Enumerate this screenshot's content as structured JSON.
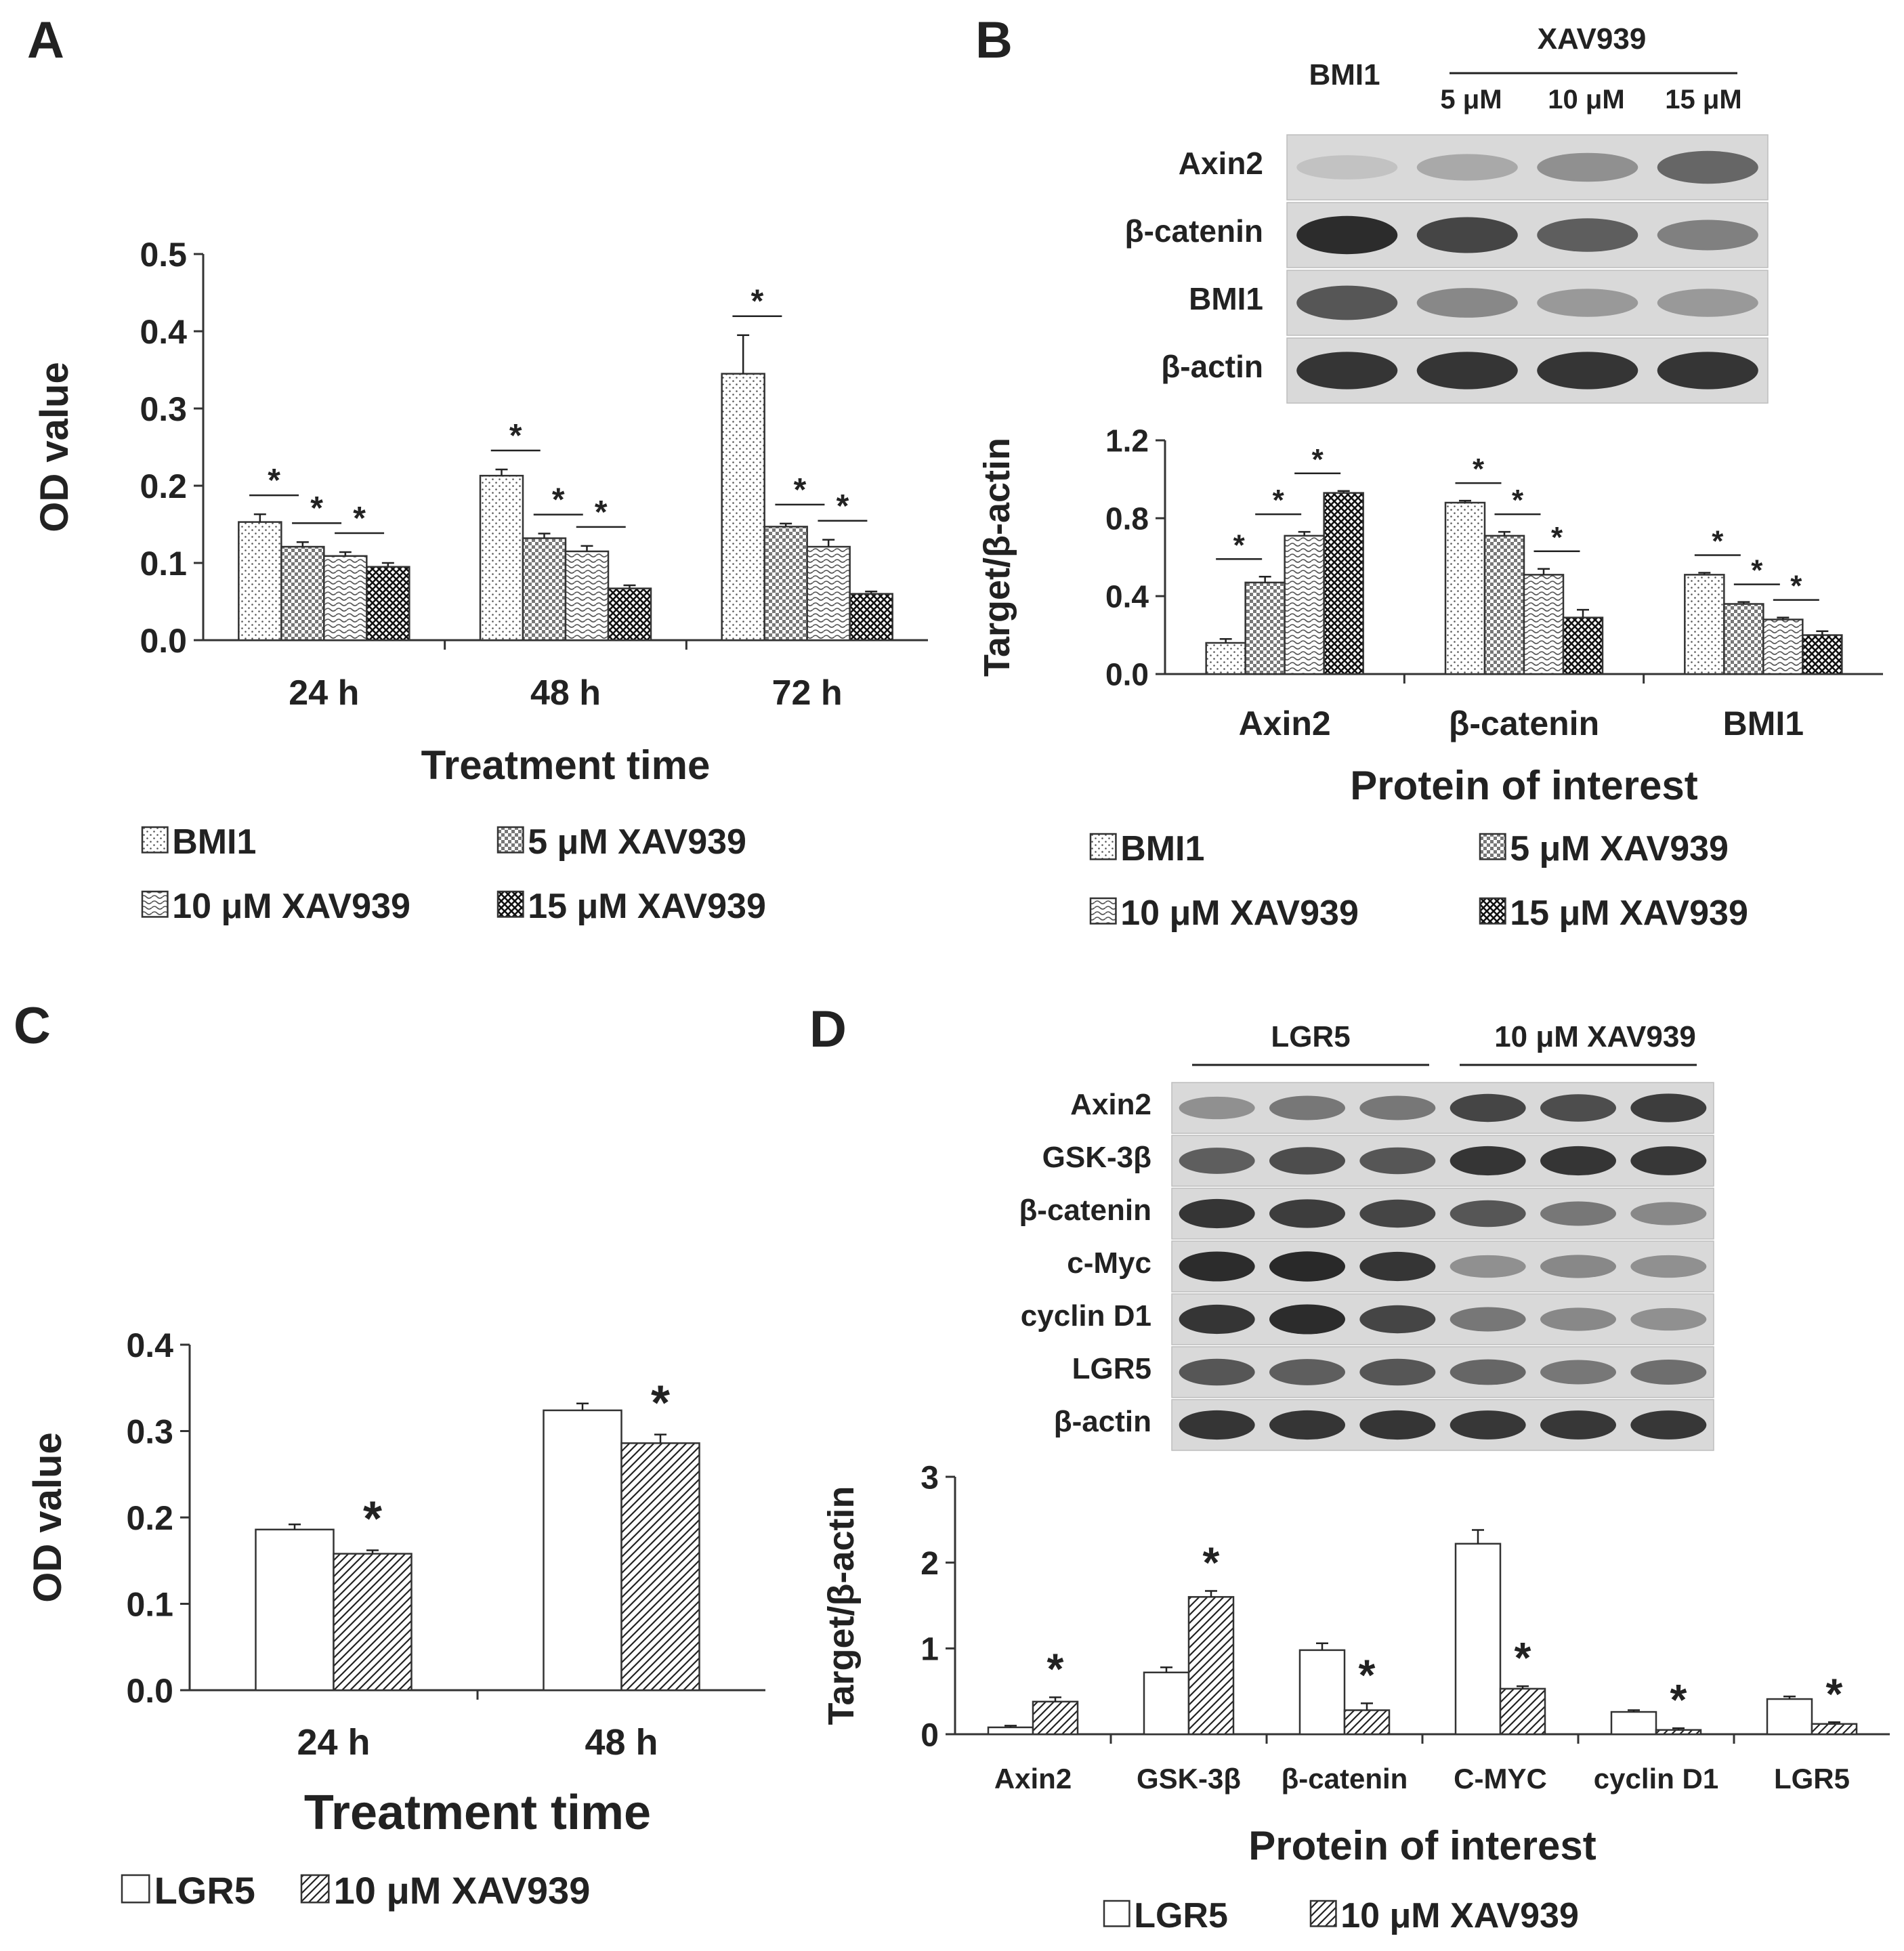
{
  "panels": {
    "A": {
      "label": "A",
      "chart": {
        "type": "bar",
        "ylabel": "OD value",
        "xlabel": "Treatment time",
        "ylim": [
          0,
          0.5
        ],
        "yticks": [
          "0.0",
          "0.1",
          "0.2",
          "0.3",
          "0.4",
          "0.5"
        ],
        "categories": [
          "24 h",
          "48 h",
          "72 h"
        ],
        "series": [
          {
            "name": "BMI1",
            "pattern": "dots",
            "values": [
              0.153,
              0.213,
              0.345
            ],
            "errors": [
              0.01,
              0.008,
              0.05
            ]
          },
          {
            "name": "5 μM XAV939",
            "pattern": "check",
            "values": [
              0.121,
              0.132,
              0.147
            ],
            "errors": [
              0.006,
              0.006,
              0.004
            ]
          },
          {
            "name": "10 μM XAV939",
            "pattern": "wave",
            "values": [
              0.109,
              0.115,
              0.121
            ],
            "errors": [
              0.005,
              0.007,
              0.009
            ]
          },
          {
            "name": "15 μM XAV939",
            "pattern": "cross",
            "values": [
              0.095,
              0.067,
              0.06
            ],
            "errors": [
              0.005,
              0.004,
              0.003
            ]
          }
        ],
        "sig_marker": "*",
        "legend": [
          "BMI1",
          "5 μM XAV939",
          "10 μM XAV939",
          "15 μM XAV939"
        ]
      }
    },
    "B": {
      "label": "B",
      "blot": {
        "group_label": "XAV939",
        "lane_labels": [
          "BMI1",
          "5 μM",
          "10 μM",
          "15 μM"
        ],
        "rows": [
          {
            "label": "Axin2",
            "intensity": [
              0.05,
              0.2,
              0.35,
              0.6
            ]
          },
          {
            "label": "β-catenin",
            "intensity": [
              0.95,
              0.8,
              0.65,
              0.45
            ]
          },
          {
            "label": "BMI1",
            "intensity": [
              0.7,
              0.4,
              0.3,
              0.3
            ]
          },
          {
            "label": "β-actin",
            "intensity": [
              0.9,
              0.9,
              0.9,
              0.9
            ]
          }
        ]
      },
      "chart": {
        "type": "bar",
        "ylabel": "Target/β-actin",
        "xlabel": "Protein of interest",
        "ylim": [
          0,
          1.2
        ],
        "yticks": [
          "0.0",
          "0.4",
          "0.8",
          "1.2"
        ],
        "categories": [
          "Axin2",
          "β-catenin",
          "BMI1"
        ],
        "series": [
          {
            "name": "BMI1",
            "pattern": "dots",
            "values": [
              0.16,
              0.88,
              0.51
            ],
            "errors": [
              0.02,
              0.01,
              0.01
            ]
          },
          {
            "name": "5 μM XAV939",
            "pattern": "check",
            "values": [
              0.47,
              0.71,
              0.36
            ],
            "errors": [
              0.03,
              0.02,
              0.01
            ]
          },
          {
            "name": "10 μM XAV939",
            "pattern": "wave",
            "values": [
              0.71,
              0.51,
              0.28
            ],
            "errors": [
              0.02,
              0.03,
              0.01
            ]
          },
          {
            "name": "15 μM XAV939",
            "pattern": "cross",
            "values": [
              0.93,
              0.29,
              0.2
            ],
            "errors": [
              0.01,
              0.04,
              0.02
            ]
          }
        ],
        "sig_marker": "*",
        "legend": [
          "BMI1",
          "5 μM XAV939",
          "10 μM XAV939",
          "15 μM XAV939"
        ]
      }
    },
    "C": {
      "label": "C",
      "chart": {
        "type": "bar",
        "ylabel": "OD value",
        "xlabel": "Treatment time",
        "ylim": [
          0,
          0.4
        ],
        "yticks": [
          "0.0",
          "0.1",
          "0.2",
          "0.3",
          "0.4"
        ],
        "categories": [
          "24 h",
          "48 h"
        ],
        "series": [
          {
            "name": "LGR5",
            "pattern": "white",
            "values": [
              0.186,
              0.324
            ],
            "errors": [
              0.006,
              0.008
            ]
          },
          {
            "name": "10 μM XAV939",
            "pattern": "hatch",
            "values": [
              0.158,
              0.286
            ],
            "errors": [
              0.004,
              0.01
            ]
          }
        ],
        "sig_marker": "*",
        "legend": [
          "LGR5",
          "10 μM XAV939"
        ]
      }
    },
    "D": {
      "label": "D",
      "blot": {
        "group_labels": [
          "LGR5",
          "10 μM XAV939"
        ],
        "rows": [
          {
            "label": "Axin2",
            "intensity": [
              0.35,
              0.5,
              0.5,
              0.8,
              0.75,
              0.85
            ]
          },
          {
            "label": "GSK-3β",
            "intensity": [
              0.65,
              0.75,
              0.7,
              0.9,
              0.9,
              0.88
            ]
          },
          {
            "label": "β-catenin",
            "intensity": [
              0.9,
              0.85,
              0.8,
              0.7,
              0.5,
              0.4
            ]
          },
          {
            "label": "c-Myc",
            "intensity": [
              0.95,
              0.97,
              0.9,
              0.35,
              0.4,
              0.35
            ]
          },
          {
            "label": "cyclin D1",
            "intensity": [
              0.9,
              0.95,
              0.8,
              0.5,
              0.4,
              0.35
            ]
          },
          {
            "label": "LGR5",
            "intensity": [
              0.7,
              0.65,
              0.7,
              0.6,
              0.5,
              0.55
            ]
          },
          {
            "label": "β-actin",
            "intensity": [
              0.9,
              0.9,
              0.9,
              0.88,
              0.88,
              0.88
            ]
          }
        ]
      },
      "chart": {
        "type": "bar",
        "ylabel": "Target/β-actin",
        "xlabel": "Protein of interest",
        "ylim": [
          0,
          3
        ],
        "yticks": [
          "0",
          "1",
          "2",
          "3"
        ],
        "categories": [
          "Axin2",
          "GSK-3β",
          "β-catenin",
          "C-MYC",
          "cyclin D1",
          "LGR5"
        ],
        "series": [
          {
            "name": "LGR5",
            "pattern": "white",
            "values": [
              0.08,
              0.72,
              0.98,
              2.22,
              0.26,
              0.41
            ],
            "errors": [
              0.02,
              0.06,
              0.08,
              0.16,
              0.02,
              0.03
            ]
          },
          {
            "name": "10 μM XAV939",
            "pattern": "hatch",
            "values": [
              0.38,
              1.6,
              0.28,
              0.53,
              0.05,
              0.12
            ],
            "errors": [
              0.05,
              0.07,
              0.08,
              0.03,
              0.02,
              0.02
            ]
          }
        ],
        "sig_marker": "*",
        "legend": [
          "LGR5",
          "10 μM XAV939"
        ]
      }
    }
  },
  "chart_data": [
    {
      "panel": "A",
      "type": "bar",
      "ylabel": "OD value",
      "xlabel": "Treatment time",
      "ylim": [
        0,
        0.5
      ],
      "categories": [
        "24 h",
        "48 h",
        "72 h"
      ],
      "series": [
        {
          "name": "BMI1",
          "values": [
            0.153,
            0.213,
            0.345
          ]
        },
        {
          "name": "5 μM XAV939",
          "values": [
            0.121,
            0.132,
            0.147
          ]
        },
        {
          "name": "10 μM XAV939",
          "values": [
            0.109,
            0.115,
            0.121
          ]
        },
        {
          "name": "15 μM XAV939",
          "values": [
            0.095,
            0.067,
            0.06
          ]
        }
      ]
    },
    {
      "panel": "B",
      "type": "bar",
      "ylabel": "Target/β-actin",
      "xlabel": "Protein of interest",
      "ylim": [
        0,
        1.2
      ],
      "categories": [
        "Axin2",
        "β-catenin",
        "BMI1"
      ],
      "series": [
        {
          "name": "BMI1",
          "values": [
            0.16,
            0.88,
            0.51
          ]
        },
        {
          "name": "5 μM XAV939",
          "values": [
            0.47,
            0.71,
            0.36
          ]
        },
        {
          "name": "10 μM XAV939",
          "values": [
            0.71,
            0.51,
            0.28
          ]
        },
        {
          "name": "15 μM XAV939",
          "values": [
            0.93,
            0.29,
            0.2
          ]
        }
      ]
    },
    {
      "panel": "C",
      "type": "bar",
      "ylabel": "OD value",
      "xlabel": "Treatment time",
      "ylim": [
        0,
        0.4
      ],
      "categories": [
        "24 h",
        "48 h"
      ],
      "series": [
        {
          "name": "LGR5",
          "values": [
            0.186,
            0.324
          ]
        },
        {
          "name": "10 μM XAV939",
          "values": [
            0.158,
            0.286
          ]
        }
      ]
    },
    {
      "panel": "D",
      "type": "bar",
      "ylabel": "Target/β-actin",
      "xlabel": "Protein of interest",
      "ylim": [
        0,
        3
      ],
      "categories": [
        "Axin2",
        "GSK-3β",
        "β-catenin",
        "C-MYC",
        "cyclin D1",
        "LGR5"
      ],
      "series": [
        {
          "name": "LGR5",
          "values": [
            0.08,
            0.72,
            0.98,
            2.22,
            0.26,
            0.41
          ]
        },
        {
          "name": "10 μM XAV939",
          "values": [
            0.38,
            1.6,
            0.28,
            0.53,
            0.05,
            0.12
          ]
        }
      ]
    }
  ]
}
